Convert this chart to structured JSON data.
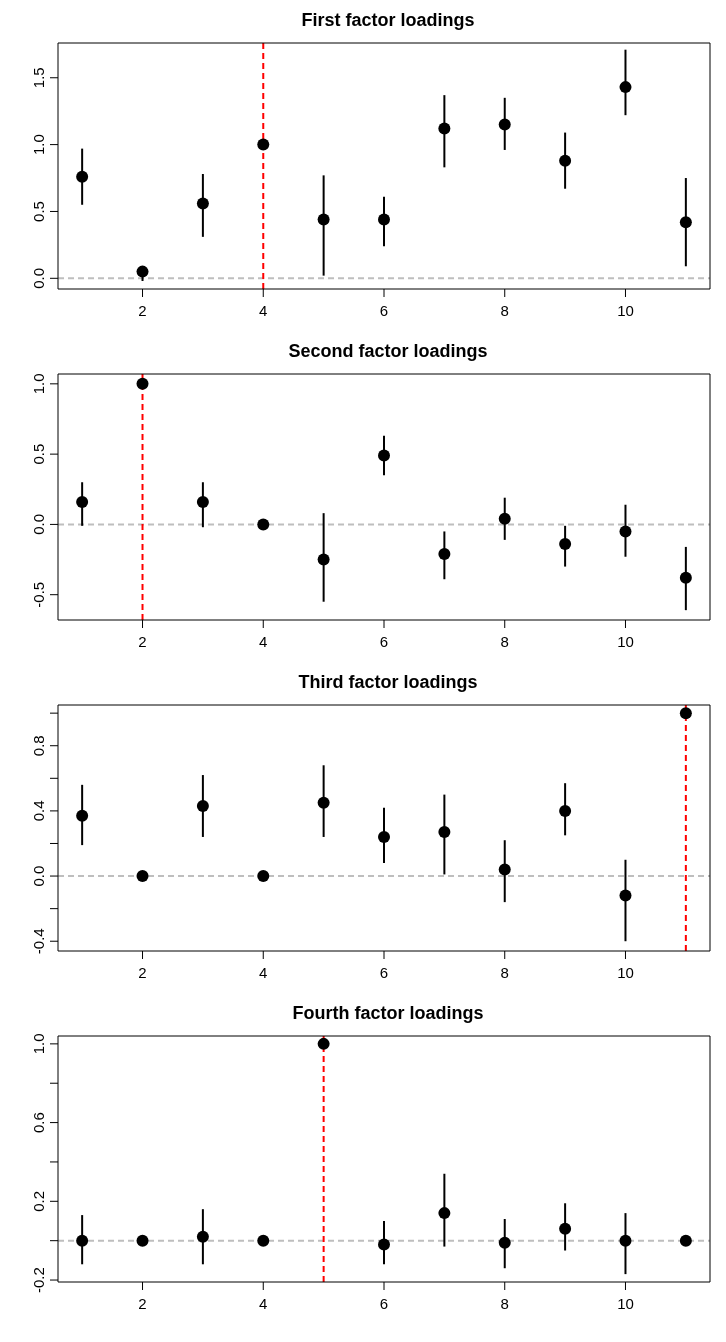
{
  "chart_data": [
    {
      "type": "scatter",
      "title": "First factor loadings",
      "x": [
        1,
        2,
        3,
        4,
        5,
        6,
        7,
        8,
        9,
        10,
        11
      ],
      "color": "#000000",
      "marker": "circle",
      "values": [
        0.76,
        0.05,
        0.56,
        1.0,
        0.44,
        0.44,
        1.12,
        1.15,
        0.88,
        1.43,
        0.42
      ],
      "errors": [
        [
          0.55,
          0.97
        ],
        [
          -0.02,
          0.09
        ],
        [
          0.31,
          0.78
        ],
        null,
        [
          0.02,
          0.77
        ],
        [
          0.24,
          0.61
        ],
        [
          0.83,
          1.37
        ],
        [
          0.96,
          1.35
        ],
        [
          0.67,
          1.09
        ],
        [
          1.22,
          1.71
        ],
        [
          0.09,
          0.75
        ]
      ],
      "xlim": [
        0.6,
        11.4
      ],
      "xticks": [
        2,
        4,
        6,
        8,
        10
      ],
      "ylim": [
        -0.08,
        1.76
      ],
      "yticks": [
        {
          "value": 0,
          "label": "0.0"
        },
        {
          "value": 0.5,
          "label": "0.5"
        },
        {
          "value": 1,
          "label": "1.0"
        },
        {
          "value": 1.5,
          "label": "1.5"
        }
      ],
      "ref_lines": [
        {
          "axis": "y",
          "value": 0,
          "color": "#bebebe",
          "line_style": "dashed"
        },
        {
          "axis": "x",
          "value": 4,
          "color": "#ff0000",
          "line_style": "dashed"
        }
      ]
    },
    {
      "type": "scatter",
      "title": "Second factor loadings",
      "x": [
        1,
        2,
        3,
        4,
        5,
        6,
        7,
        8,
        9,
        10,
        11
      ],
      "color": "#000000",
      "marker": "circle",
      "values": [
        0.16,
        1.0,
        0.16,
        0,
        -0.25,
        0.49,
        -0.21,
        0.04,
        -0.14,
        -0.05,
        -0.38
      ],
      "errors": [
        [
          -0.01,
          0.3
        ],
        null,
        [
          -0.02,
          0.3
        ],
        null,
        [
          -0.55,
          0.08
        ],
        [
          0.35,
          0.63
        ],
        [
          -0.39,
          -0.05
        ],
        [
          -0.11,
          0.19
        ],
        [
          -0.3,
          -0.01
        ],
        [
          -0.23,
          0.14
        ],
        [
          -0.61,
          -0.16
        ]
      ],
      "xlim": [
        0.6,
        11.4
      ],
      "xticks": [
        2,
        4,
        6,
        8,
        10
      ],
      "ylim": [
        -0.68,
        1.07
      ],
      "yticks": [
        {
          "value": -0.5,
          "label": "-0.5"
        },
        {
          "value": 0,
          "label": "0.0"
        },
        {
          "value": 0.5,
          "label": "0.5"
        },
        {
          "value": 1,
          "label": "1.0"
        }
      ],
      "ref_lines": [
        {
          "axis": "y",
          "value": 0,
          "color": "#bebebe",
          "line_style": "dashed"
        },
        {
          "axis": "x",
          "value": 2,
          "color": "#ff0000",
          "line_style": "dashed"
        }
      ]
    },
    {
      "type": "scatter",
      "title": "Third factor loadings",
      "x": [
        1,
        2,
        3,
        4,
        5,
        6,
        7,
        8,
        9,
        10,
        11
      ],
      "color": "#000000",
      "marker": "circle",
      "values": [
        0.37,
        0,
        0.43,
        0,
        0.45,
        0.24,
        0.27,
        0.04,
        0.4,
        -0.12,
        1.0
      ],
      "errors": [
        [
          0.19,
          0.56
        ],
        null,
        [
          0.24,
          0.62
        ],
        null,
        [
          0.24,
          0.68
        ],
        [
          0.08,
          0.42
        ],
        [
          0.01,
          0.5
        ],
        [
          -0.16,
          0.22
        ],
        [
          0.25,
          0.57
        ],
        [
          -0.4,
          0.1
        ],
        null
      ],
      "xlim": [
        0.6,
        11.4
      ],
      "xticks": [
        2,
        4,
        6,
        8,
        10
      ],
      "ylim": [
        -0.46,
        1.05
      ],
      "yticks": [
        {
          "value": -0.4,
          "label": "-0.4"
        },
        {
          "value": -0.2,
          "label": null
        },
        {
          "value": 0,
          "label": "0.0"
        },
        {
          "value": 0.2,
          "label": null
        },
        {
          "value": 0.4,
          "label": "0.4"
        },
        {
          "value": 0.6,
          "label": null
        },
        {
          "value": 0.8,
          "label": "0.8"
        },
        {
          "value": 1,
          "label": null
        }
      ],
      "ref_lines": [
        {
          "axis": "y",
          "value": 0,
          "color": "#bebebe",
          "line_style": "dashed"
        },
        {
          "axis": "x",
          "value": 11,
          "color": "#ff0000",
          "line_style": "dashed"
        }
      ]
    },
    {
      "type": "scatter",
      "title": "Fourth factor loadings",
      "x": [
        1,
        2,
        3,
        4,
        5,
        6,
        7,
        8,
        9,
        10,
        11
      ],
      "color": "#000000",
      "marker": "circle",
      "values": [
        0,
        0,
        0.02,
        0,
        1.0,
        -0.02,
        0.14,
        -0.01,
        0.06,
        0,
        0
      ],
      "errors": [
        [
          -0.12,
          0.13
        ],
        null,
        [
          -0.12,
          0.16
        ],
        null,
        null,
        [
          -0.12,
          0.1
        ],
        [
          -0.03,
          0.34
        ],
        [
          -0.14,
          0.11
        ],
        [
          -0.05,
          0.19
        ],
        [
          -0.17,
          0.14
        ],
        null
      ],
      "xlim": [
        0.6,
        11.4
      ],
      "xticks": [
        2,
        4,
        6,
        8,
        10
      ],
      "ylim": [
        -0.21,
        1.04
      ],
      "yticks": [
        {
          "value": -0.2,
          "label": "-0.2"
        },
        {
          "value": 0,
          "label": null
        },
        {
          "value": 0.2,
          "label": "0.2"
        },
        {
          "value": 0.4,
          "label": null
        },
        {
          "value": 0.6,
          "label": "0.6"
        },
        {
          "value": 0.8,
          "label": null
        },
        {
          "value": 1,
          "label": "1.0"
        }
      ],
      "ref_lines": [
        {
          "axis": "y",
          "value": 0,
          "color": "#bebebe",
          "line_style": "dashed"
        },
        {
          "axis": "x",
          "value": 5,
          "color": "#ff0000",
          "line_style": "dashed"
        }
      ]
    }
  ]
}
